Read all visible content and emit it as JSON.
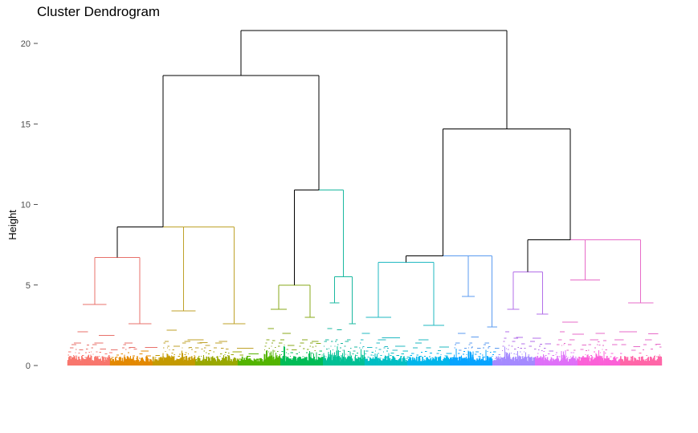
{
  "chart_data": {
    "type": "dendrogram",
    "title": "Cluster Dendrogram",
    "ylabel": "Height",
    "xlabel": "",
    "ylim": [
      0,
      21
    ],
    "yticks": [
      0,
      5,
      10,
      15,
      20
    ],
    "grid": false,
    "legend": "none",
    "leaf_count": 600,
    "root_height": 20.8,
    "link_color": "#000000",
    "merges": [
      {
        "name": "root",
        "height": 20.8,
        "children": [
          "left-group",
          "right-group"
        ]
      },
      {
        "name": "left-group",
        "height": 18.0,
        "children": [
          "group-a",
          "group-b"
        ]
      },
      {
        "name": "group-a",
        "height": 8.6,
        "children": [
          "cluster-1",
          "cluster-2"
        ]
      },
      {
        "name": "group-b",
        "height": 10.9,
        "children": [
          "cluster-3",
          "cluster-4"
        ]
      },
      {
        "name": "right-group",
        "height": 14.7,
        "children": [
          "group-c",
          "group-d"
        ]
      },
      {
        "name": "group-c",
        "height": 6.8,
        "children": [
          "cluster-5",
          "cluster-6"
        ]
      },
      {
        "name": "group-d",
        "height": 7.8,
        "children": [
          "cluster-7",
          "cluster-8"
        ]
      }
    ],
    "clusters": [
      {
        "id": 1,
        "color": "#E8716B",
        "height": 6.7,
        "split": [
          3.8,
          2.6
        ],
        "sub": [
          2.1,
          1.4,
          1.3,
          1.1
        ]
      },
      {
        "id": 2,
        "color": "#BFA22A",
        "height": 8.6,
        "split": [
          3.4,
          2.6
        ],
        "sub": [
          2.2,
          1.5,
          1.4,
          1.1
        ]
      },
      {
        "id": 3,
        "color": "#8AAA1B",
        "height": 5.0,
        "split": [
          3.5,
          3.0
        ],
        "sub": [
          2.3,
          1.6,
          1.4,
          1.2
        ]
      },
      {
        "id": 4,
        "color": "#1BB8A0",
        "height": 5.5,
        "split": [
          3.9,
          2.6
        ],
        "sub": [
          2.3,
          1.6,
          1.5,
          1.2
        ]
      },
      {
        "id": 5,
        "color": "#22B9C2",
        "height": 6.4,
        "split": [
          3.0,
          2.5
        ],
        "sub": [
          2.0,
          1.6,
          1.4,
          1.1
        ]
      },
      {
        "id": 6,
        "color": "#5B9BF0",
        "height": 6.8,
        "split": [
          4.3,
          2.4
        ],
        "sub": [
          2.0,
          1.4,
          1.3,
          1.1
        ]
      },
      {
        "id": 7,
        "color": "#B36FE8",
        "height": 5.8,
        "split": [
          3.5,
          3.2
        ],
        "sub": [
          2.1,
          1.7,
          1.5,
          1.2
        ]
      },
      {
        "id": 8,
        "color": "#E76BC8",
        "height": 7.8,
        "split": [
          5.3,
          3.9
        ],
        "sub": [
          2.7,
          2.1,
          1.6,
          1.3
        ]
      }
    ],
    "leaf_palette": [
      "#F8766D",
      "#E38900",
      "#C49A00",
      "#99A800",
      "#53B400",
      "#00BC56",
      "#00C094",
      "#00BFC4",
      "#00B6EB",
      "#06A4FF",
      "#A58AFF",
      "#DF70F8",
      "#FB61D7",
      "#FF66A8"
    ]
  }
}
